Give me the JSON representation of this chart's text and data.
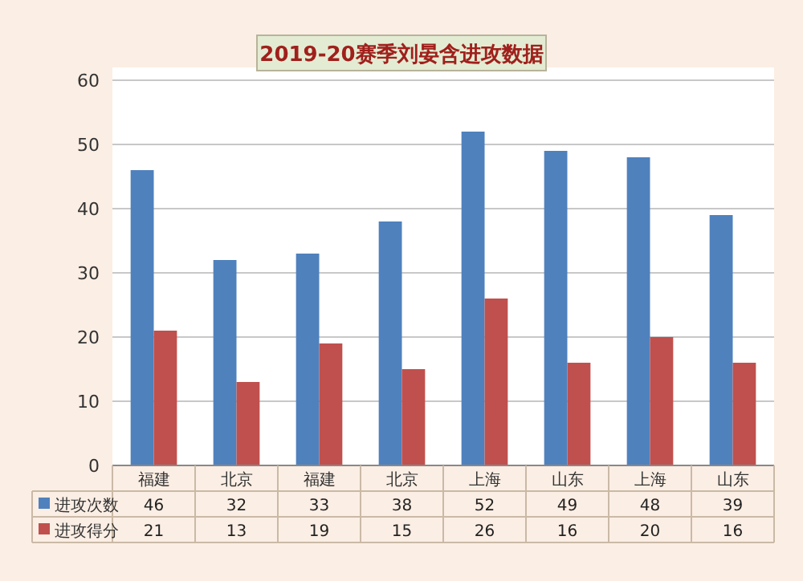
{
  "chart_data": {
    "type": "bar",
    "title": "2019-20赛季刘晏含进攻数据",
    "categories": [
      "福建",
      "北京",
      "福建",
      "北京",
      "上海",
      "山东",
      "上海",
      "山东"
    ],
    "series": [
      {
        "name": "进攻次数",
        "color": "#4f81bd",
        "values": [
          46,
          32,
          33,
          38,
          52,
          49,
          48,
          39
        ]
      },
      {
        "name": "进攻得分",
        "color": "#c0504d",
        "values": [
          21,
          13,
          19,
          15,
          26,
          16,
          20,
          16
        ]
      }
    ],
    "ylim": [
      0,
      60
    ],
    "yticks": [
      0,
      10,
      20,
      30,
      40,
      50,
      60
    ],
    "grid": "y",
    "data_labels": true,
    "legend": "bottom left"
  }
}
